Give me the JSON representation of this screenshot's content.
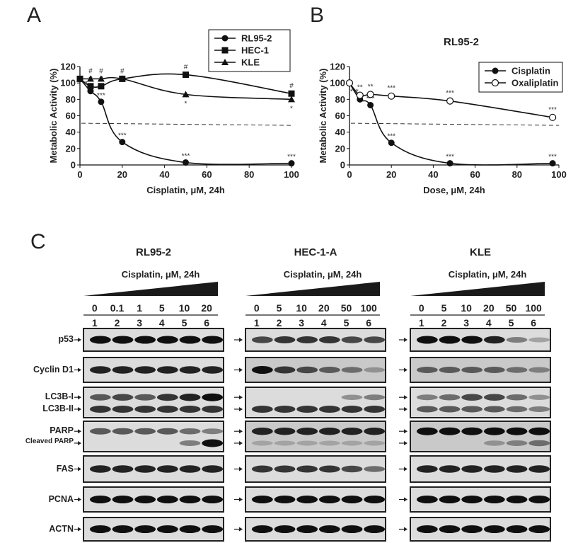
{
  "panels": {
    "a": "A",
    "b": "B",
    "c": "C"
  },
  "chart_data": [
    {
      "type": "line",
      "xlabel": "Cisplatin, μM, 24h",
      "ylabel": "Metabolic Activity (%)",
      "xlim": [
        0,
        100
      ],
      "ylim": [
        0,
        120
      ],
      "xticks": [
        "0",
        "20",
        "40",
        "60",
        "80",
        "100"
      ],
      "yticks": [
        "0",
        "20",
        "40",
        "60",
        "80",
        "100",
        "120"
      ],
      "legend_position": "top-right",
      "reference_line": 50,
      "series": [
        {
          "name": "RL95-2",
          "marker": "circle",
          "x": [
            0,
            5,
            10,
            20,
            50,
            100
          ],
          "y": [
            105,
            90,
            77,
            28,
            3,
            2
          ],
          "annotations": [
            "",
            "**",
            "***",
            "***",
            "***",
            "***"
          ]
        },
        {
          "name": "HEC-1",
          "marker": "square",
          "x": [
            0,
            5,
            10,
            20,
            50,
            100
          ],
          "y": [
            105,
            96,
            96,
            105,
            110,
            87
          ],
          "annotations": [
            "",
            "#",
            "#",
            "#",
            "#",
            "#"
          ]
        },
        {
          "name": "KLE",
          "marker": "triangle",
          "x": [
            0,
            5,
            10,
            20,
            50,
            100
          ],
          "y": [
            105,
            105,
            105,
            105,
            86,
            80
          ],
          "annotations": [
            "",
            "#",
            "#",
            "",
            "*",
            "*"
          ]
        }
      ]
    },
    {
      "type": "line",
      "title": "RL95-2",
      "xlabel": "Dose, μM, 24h",
      "ylabel": "Metabolic Activity (%)",
      "xlim": [
        0,
        100
      ],
      "ylim": [
        0,
        120
      ],
      "xticks": [
        "0",
        "20",
        "40",
        "60",
        "80",
        "100"
      ],
      "yticks": [
        "0",
        "20",
        "40",
        "60",
        "80",
        "100",
        "120"
      ],
      "legend_position": "top-right",
      "reference_line": 50,
      "series": [
        {
          "name": "Cisplatin",
          "marker": "filled-circle",
          "x": [
            0,
            5,
            10,
            20,
            48,
            97
          ],
          "y": [
            100,
            80,
            73,
            27,
            2,
            2
          ],
          "annotations": [
            "",
            "***",
            "***",
            "***",
            "***",
            "***"
          ]
        },
        {
          "name": "Oxaliplatin",
          "marker": "open-circle",
          "x": [
            0,
            5,
            10,
            20,
            48,
            97
          ],
          "y": [
            100,
            85,
            86,
            84,
            78,
            58
          ],
          "annotations": [
            "",
            "**",
            "**",
            "***",
            "***",
            "***"
          ]
        }
      ]
    }
  ],
  "blots": [
    {
      "title": "RL95-2",
      "treatment": "Cisplatin, μM, 24h",
      "doses": [
        "0",
        "0.1",
        "1",
        "5",
        "10",
        "20"
      ],
      "lanes": [
        "1",
        "2",
        "3",
        "4",
        "5",
        "6"
      ]
    },
    {
      "title": "HEC-1-A",
      "treatment": "Cisplatin, μM, 24h",
      "doses": [
        "0",
        "5",
        "10",
        "20",
        "50",
        "100"
      ],
      "lanes": [
        "1",
        "2",
        "3",
        "4",
        "5",
        "6"
      ]
    },
    {
      "title": "KLE",
      "treatment": "Cisplatin, μM, 24h",
      "doses": [
        "0",
        "5",
        "10",
        "20",
        "50",
        "100"
      ],
      "lanes": [
        "1",
        "2",
        "3",
        "4",
        "5",
        "6"
      ]
    }
  ],
  "blot_rows": [
    {
      "labels": [
        "p53"
      ]
    },
    {
      "labels": [
        "Cyclin D1"
      ]
    },
    {
      "labels": [
        "LC3B-I",
        "LC3B-II"
      ]
    },
    {
      "labels": [
        "PARP",
        "Cleaved PARP"
      ]
    },
    {
      "labels": [
        "FAS"
      ]
    },
    {
      "labels": [
        "PCNA"
      ]
    },
    {
      "labels": [
        "ACTN"
      ]
    }
  ],
  "band_intensity": {
    "blot0": [
      [
        [
          1,
          1,
          1,
          1,
          1,
          1
        ]
      ],
      [
        [
          0.9,
          0.9,
          0.9,
          0.9,
          0.9,
          0.9
        ]
      ],
      [
        [
          0.6,
          0.7,
          0.6,
          0.8,
          0.9,
          1
        ],
        [
          0.8,
          0.8,
          0.8,
          0.8,
          0.8,
          0.8
        ]
      ],
      [
        [
          0.6,
          0.6,
          0.6,
          0.6,
          0.5,
          0.4
        ],
        [
          0,
          0,
          0,
          0,
          0.4,
          1
        ]
      ],
      [
        [
          0.9,
          0.9,
          0.9,
          0.9,
          0.9,
          0.9
        ]
      ],
      [
        [
          1,
          1,
          1,
          1,
          1,
          1
        ]
      ],
      [
        [
          1,
          1,
          1,
          1,
          1,
          1
        ]
      ]
    ],
    "blot1": [
      [
        [
          0.7,
          0.8,
          0.8,
          0.8,
          0.7,
          0.7
        ]
      ],
      [
        [
          1,
          0.8,
          0.7,
          0.6,
          0.5,
          0.3
        ]
      ],
      [
        [
          0,
          0,
          0,
          0,
          0.3,
          0.4
        ],
        [
          0.8,
          0.8,
          0.8,
          0.8,
          0.8,
          0.8
        ]
      ],
      [
        [
          0.9,
          0.9,
          0.9,
          0.9,
          0.9,
          0.9
        ],
        [
          0.2,
          0.2,
          0.2,
          0.2,
          0.2,
          0.2
        ]
      ],
      [
        [
          0.8,
          0.8,
          0.8,
          0.8,
          0.7,
          0.5
        ]
      ],
      [
        [
          1,
          1,
          1,
          1,
          1,
          1
        ]
      ],
      [
        [
          1,
          1,
          1,
          1,
          1,
          1
        ]
      ]
    ],
    "blot2": [
      [
        [
          1,
          1,
          1,
          0.9,
          0.4,
          0.2
        ]
      ],
      [
        [
          0.6,
          0.6,
          0.6,
          0.6,
          0.5,
          0.4
        ]
      ],
      [
        [
          0.4,
          0.5,
          0.7,
          0.7,
          0.5,
          0.3
        ],
        [
          0.6,
          0.6,
          0.6,
          0.6,
          0.5,
          0.4
        ]
      ],
      [
        [
          1,
          1,
          1,
          1,
          1,
          1
        ],
        [
          0,
          0,
          0,
          0.3,
          0.4,
          0.5
        ]
      ],
      [
        [
          0.9,
          0.9,
          0.9,
          0.9,
          0.9,
          0.9
        ]
      ],
      [
        [
          1,
          1,
          1,
          1,
          1,
          1
        ]
      ],
      [
        [
          1,
          1,
          1,
          1,
          1,
          1
        ]
      ]
    ]
  }
}
